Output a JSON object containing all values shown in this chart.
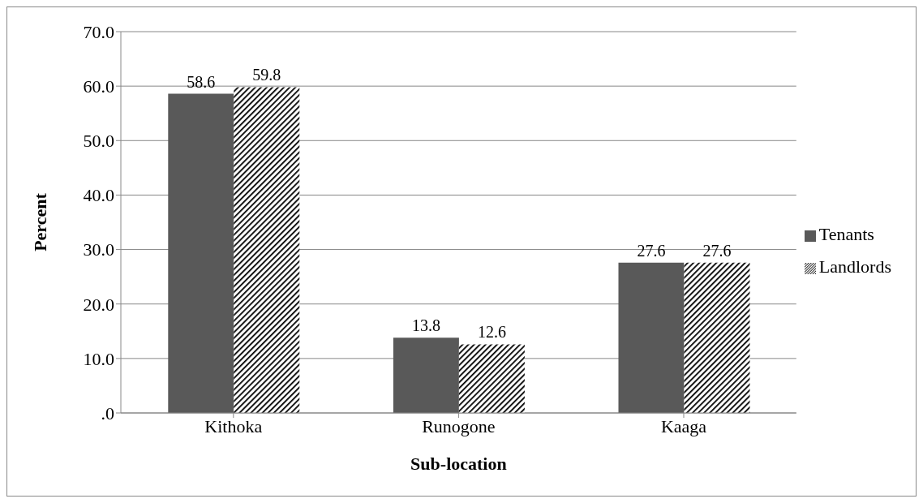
{
  "chart_data": {
    "type": "bar",
    "xlabel": "Sub-location",
    "ylabel": "Percent",
    "categories": [
      "Kithoka",
      "Runogone",
      "Kaaga"
    ],
    "series": [
      {
        "name": "Tenants",
        "color": "#595959",
        "values": [
          58.6,
          13.8,
          27.6
        ]
      },
      {
        "name": "Landlords",
        "color": "#000000",
        "values": [
          59.8,
          12.6,
          27.6
        ]
      }
    ],
    "ylim": [
      0,
      70
    ],
    "yticks": [
      {
        "value": 0,
        "label": ".0"
      },
      {
        "value": 10,
        "label": "10.0"
      },
      {
        "value": 20,
        "label": "20.0"
      },
      {
        "value": 30,
        "label": "30.0"
      },
      {
        "value": 40,
        "label": "40.0"
      },
      {
        "value": 50,
        "label": "50.0"
      },
      {
        "value": 60,
        "label": "60.0"
      },
      {
        "value": 70,
        "label": "70.0"
      }
    ],
    "grid": "y",
    "legend": "right",
    "data_labels": true
  }
}
